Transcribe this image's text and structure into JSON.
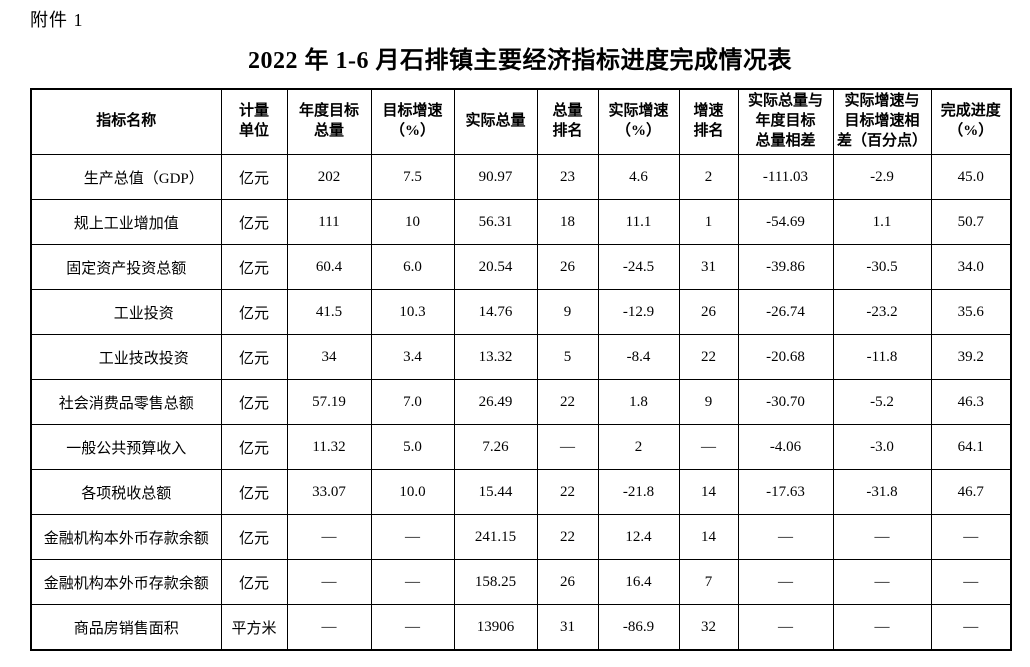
{
  "page": {
    "attachment_label": "附件 1",
    "title": "2022 年 1-6 月石排镇主要经济指标进度完成情况表"
  },
  "table": {
    "columns": [
      {
        "key": "indicator-name",
        "label": "指标名称"
      },
      {
        "key": "unit",
        "label": "计量\n单位"
      },
      {
        "key": "annual-target-total",
        "label": "年度目标\n总量"
      },
      {
        "key": "target-growth",
        "label": "目标增速\n（%）"
      },
      {
        "key": "actual-total",
        "label": "实际总量"
      },
      {
        "key": "total-rank",
        "label": "总量\n排名"
      },
      {
        "key": "actual-growth",
        "label": "实际增速\n（%）"
      },
      {
        "key": "growth-rank",
        "label": "增速\n排名"
      },
      {
        "key": "actual-vs-annual-target-diff",
        "label": "实际总量与\n年度目标\n总量相差"
      },
      {
        "key": "actual-vs-target-growth-diff",
        "label": "实际增速与\n目标增速相\n差（百分点）"
      },
      {
        "key": "completion-progress",
        "label": "完成进度\n（%）"
      }
    ],
    "rows": [
      {
        "name": "生产总值（GDP）",
        "indent": true,
        "cells": [
          "亿元",
          "202",
          "7.5",
          "90.97",
          "23",
          "4.6",
          "2",
          "-111.03",
          "-2.9",
          "45.0"
        ]
      },
      {
        "name": "规上工业增加值",
        "indent": false,
        "cells": [
          "亿元",
          "111",
          "10",
          "56.31",
          "18",
          "11.1",
          "1",
          "-54.69",
          "1.1",
          "50.7"
        ]
      },
      {
        "name": "固定资产投资总额",
        "indent": false,
        "cells": [
          "亿元",
          "60.4",
          "6.0",
          "20.54",
          "26",
          "-24.5",
          "31",
          "-39.86",
          "-30.5",
          "34.0"
        ]
      },
      {
        "name": "工业投资",
        "indent": true,
        "cells": [
          "亿元",
          "41.5",
          "10.3",
          "14.76",
          "9",
          "-12.9",
          "26",
          "-26.74",
          "-23.2",
          "35.6"
        ]
      },
      {
        "name": "工业技改投资",
        "indent": true,
        "cells": [
          "亿元",
          "34",
          "3.4",
          "13.32",
          "5",
          "-8.4",
          "22",
          "-20.68",
          "-11.8",
          "39.2"
        ]
      },
      {
        "name": "社会消费品零售总额",
        "indent": false,
        "cells": [
          "亿元",
          "57.19",
          "7.0",
          "26.49",
          "22",
          "1.8",
          "9",
          "-30.70",
          "-5.2",
          "46.3"
        ]
      },
      {
        "name": "一般公共预算收入",
        "indent": false,
        "cells": [
          "亿元",
          "11.32",
          "5.0",
          "7.26",
          "—",
          "2",
          "—",
          "-4.06",
          "-3.0",
          "64.1"
        ]
      },
      {
        "name": "各项税收总额",
        "indent": false,
        "cells": [
          "亿元",
          "33.07",
          "10.0",
          "15.44",
          "22",
          "-21.8",
          "14",
          "-17.63",
          "-31.8",
          "46.7"
        ]
      },
      {
        "name": "金融机构本外币存款余额",
        "indent": false,
        "cells": [
          "亿元",
          "—",
          "—",
          "241.15",
          "22",
          "12.4",
          "14",
          "—",
          "—",
          "—"
        ]
      },
      {
        "name": "金融机构本外币存款余额",
        "indent": false,
        "cells": [
          "亿元",
          "—",
          "—",
          "158.25",
          "26",
          "16.4",
          "7",
          "—",
          "—",
          "—"
        ]
      },
      {
        "name": "商品房销售面积",
        "indent": false,
        "cells": [
          "平方米",
          "—",
          "—",
          "13906",
          "31",
          "-86.9",
          "32",
          "—",
          "—",
          "—"
        ]
      }
    ]
  }
}
